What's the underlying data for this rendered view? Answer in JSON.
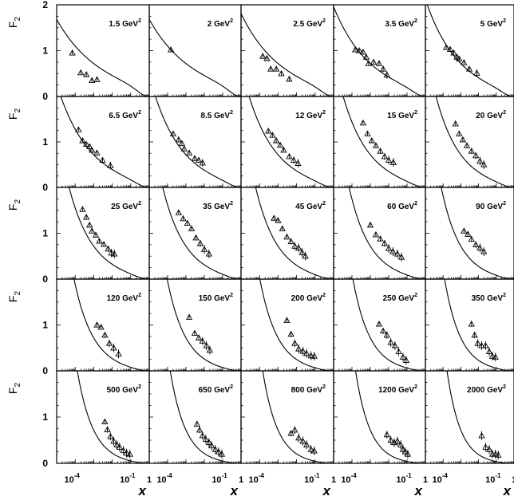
{
  "chart_data": {
    "type": "scatter",
    "layout": "grid of 25 panels, 5 rows x 5 columns, shared axes",
    "ylabel": "F",
    "ylabel_subscript": "2",
    "xlabel": "x",
    "x_scale": "log",
    "xlim": [
      1e-05,
      1
    ],
    "ylim": [
      0,
      2
    ],
    "y_ticks": [
      "0",
      "1",
      "2"
    ],
    "x_tick_labels": [
      {
        "base": "10",
        "exp": "-4"
      },
      {
        "base": "10",
        "exp": "-1"
      },
      {
        "base": "1",
        "exp": ""
      }
    ],
    "marker": "open-triangle with error bars",
    "curve": "fit (solid line)",
    "panels": [
      {
        "label": "1.5 GeV",
        "unit_exp": "2",
        "curve_k": 0.184,
        "points": [
          [
            7e-05,
            0.95
          ],
          [
            0.0002,
            0.52
          ],
          [
            0.0004,
            0.48
          ],
          [
            0.0008,
            0.35
          ],
          [
            0.0015,
            0.37
          ]
        ]
      },
      {
        "label": "2 GeV",
        "unit_exp": "2",
        "curve_k": 0.184,
        "points": [
          [
            0.00015,
            1.02
          ]
        ]
      },
      {
        "label": "2.5 GeV",
        "unit_exp": "2",
        "curve_k": 0.2,
        "points": [
          [
            0.00015,
            0.88
          ],
          [
            0.00025,
            0.83
          ],
          [
            0.0004,
            0.6
          ],
          [
            0.0008,
            0.6
          ],
          [
            0.0015,
            0.5
          ],
          [
            0.004,
            0.38
          ]
        ]
      },
      {
        "label": "3.5 GeV",
        "unit_exp": "2",
        "curve_k": 0.217,
        "points": [
          [
            0.00015,
            1.02
          ],
          [
            0.00025,
            1.0
          ],
          [
            0.0004,
            0.97
          ],
          [
            0.0006,
            0.86
          ],
          [
            0.0008,
            0.72
          ],
          [
            0.0015,
            0.75
          ],
          [
            0.003,
            0.72
          ],
          [
            0.005,
            0.6
          ],
          [
            0.008,
            0.47
          ]
        ]
      },
      {
        "label": "5 GeV",
        "unit_exp": "2",
        "curve_k": 0.234,
        "points": [
          [
            0.00015,
            1.07
          ],
          [
            0.00025,
            1.03
          ],
          [
            0.0004,
            0.95
          ],
          [
            0.0006,
            0.86
          ],
          [
            0.0008,
            0.82
          ],
          [
            0.0015,
            0.74
          ],
          [
            0.003,
            0.6
          ],
          [
            0.008,
            0.51
          ]
        ]
      },
      {
        "label": "6.5 GeV",
        "unit_exp": "2",
        "curve_k": 0.25,
        "points": [
          [
            0.00015,
            1.27
          ],
          [
            0.00025,
            1.03
          ],
          [
            0.0004,
            0.95
          ],
          [
            0.0006,
            0.9
          ],
          [
            0.0008,
            0.82
          ],
          [
            0.0015,
            0.76
          ],
          [
            0.003,
            0.6
          ],
          [
            0.008,
            0.48
          ]
        ]
      },
      {
        "label": "8.5 GeV",
        "unit_exp": "2",
        "curve_k": 0.267,
        "points": [
          [
            0.0002,
            1.18
          ],
          [
            0.0004,
            1.05
          ],
          [
            0.0006,
            0.97
          ],
          [
            0.0008,
            0.85
          ],
          [
            0.0015,
            0.76
          ],
          [
            0.003,
            0.64
          ],
          [
            0.005,
            0.6
          ],
          [
            0.008,
            0.54
          ]
        ]
      },
      {
        "label": "12 GeV",
        "unit_exp": "2",
        "curve_k": 0.284,
        "points": [
          [
            0.0003,
            1.24
          ],
          [
            0.0005,
            1.15
          ],
          [
            0.0008,
            1.03
          ],
          [
            0.0013,
            0.93
          ],
          [
            0.002,
            0.82
          ],
          [
            0.004,
            0.68
          ],
          [
            0.007,
            0.6
          ],
          [
            0.012,
            0.53
          ]
        ]
      },
      {
        "label": "15 GeV",
        "unit_exp": "2",
        "curve_k": 0.3,
        "points": [
          [
            0.0004,
            1.42
          ],
          [
            0.0007,
            1.18
          ],
          [
            0.0012,
            1.03
          ],
          [
            0.002,
            0.92
          ],
          [
            0.0035,
            0.8
          ],
          [
            0.006,
            0.68
          ],
          [
            0.01,
            0.6
          ],
          [
            0.018,
            0.55
          ]
        ]
      },
      {
        "label": "20 GeV",
        "unit_exp": "2",
        "curve_k": 0.317,
        "points": [
          [
            0.0005,
            1.4
          ],
          [
            0.0008,
            1.18
          ],
          [
            0.0013,
            1.05
          ],
          [
            0.0022,
            0.92
          ],
          [
            0.004,
            0.8
          ],
          [
            0.007,
            0.7
          ],
          [
            0.012,
            0.58
          ],
          [
            0.02,
            0.5
          ]
        ]
      },
      {
        "label": "25 GeV",
        "unit_exp": "2",
        "curve_k": 0.334,
        "points": [
          [
            0.00025,
            1.52
          ],
          [
            0.0004,
            1.35
          ],
          [
            0.0006,
            1.18
          ],
          [
            0.0008,
            1.05
          ],
          [
            0.0013,
            0.96
          ],
          [
            0.002,
            0.83
          ],
          [
            0.0035,
            0.76
          ],
          [
            0.006,
            0.66
          ],
          [
            0.009,
            0.57
          ],
          [
            0.013,
            0.55
          ]
        ]
      },
      {
        "label": "35 GeV",
        "unit_exp": "2",
        "curve_k": 0.351,
        "points": [
          [
            0.0004,
            1.45
          ],
          [
            0.0007,
            1.32
          ],
          [
            0.0012,
            1.22
          ],
          [
            0.002,
            1.1
          ],
          [
            0.0035,
            0.9
          ],
          [
            0.006,
            0.78
          ],
          [
            0.01,
            0.65
          ],
          [
            0.018,
            0.55
          ]
        ]
      },
      {
        "label": "45 GeV",
        "unit_exp": "2",
        "curve_k": 0.367,
        "points": [
          [
            0.0006,
            1.33
          ],
          [
            0.001,
            1.28
          ],
          [
            0.0017,
            1.1
          ],
          [
            0.003,
            0.92
          ],
          [
            0.005,
            0.82
          ],
          [
            0.008,
            0.72
          ],
          [
            0.013,
            0.68
          ],
          [
            0.02,
            0.58
          ],
          [
            0.03,
            0.5
          ]
        ]
      },
      {
        "label": "60 GeV",
        "unit_exp": "2",
        "curve_k": 0.384,
        "points": [
          [
            0.001,
            1.18
          ],
          [
            0.002,
            0.97
          ],
          [
            0.0035,
            0.88
          ],
          [
            0.006,
            0.78
          ],
          [
            0.01,
            0.67
          ],
          [
            0.017,
            0.6
          ],
          [
            0.03,
            0.55
          ],
          [
            0.05,
            0.48
          ]
        ]
      },
      {
        "label": "90 GeV",
        "unit_exp": "2",
        "curve_k": 0.401,
        "points": [
          [
            0.0015,
            1.05
          ],
          [
            0.0025,
            0.98
          ],
          [
            0.004,
            0.87
          ],
          [
            0.007,
            0.75
          ],
          [
            0.012,
            0.68
          ],
          [
            0.02,
            0.6
          ]
        ]
      },
      {
        "label": "120 GeV",
        "unit_exp": "2",
        "curve_k": 0.418,
        "points": [
          [
            0.0015,
            1.0
          ],
          [
            0.0025,
            0.95
          ],
          [
            0.004,
            0.78
          ],
          [
            0.007,
            0.6
          ],
          [
            0.012,
            0.5
          ],
          [
            0.022,
            0.37
          ]
        ]
      },
      {
        "label": "150 GeV",
        "unit_exp": "2",
        "curve_k": 0.434,
        "points": [
          [
            0.0015,
            1.17
          ],
          [
            0.003,
            0.82
          ],
          [
            0.005,
            0.72
          ],
          [
            0.008,
            0.65
          ],
          [
            0.013,
            0.55
          ],
          [
            0.02,
            0.45
          ]
        ]
      },
      {
        "label": "200 GeV",
        "unit_exp": "2",
        "curve_k": 0.451,
        "points": [
          [
            0.003,
            1.1
          ],
          [
            0.005,
            0.8
          ],
          [
            0.008,
            0.6
          ],
          [
            0.013,
            0.48
          ],
          [
            0.022,
            0.43
          ],
          [
            0.035,
            0.38
          ],
          [
            0.06,
            0.33
          ],
          [
            0.09,
            0.32
          ]
        ]
      },
      {
        "label": "250 GeV",
        "unit_exp": "2",
        "curve_k": 0.468,
        "points": [
          [
            0.003,
            1.02
          ],
          [
            0.005,
            0.87
          ],
          [
            0.008,
            0.78
          ],
          [
            0.013,
            0.62
          ],
          [
            0.022,
            0.55
          ],
          [
            0.035,
            0.42
          ],
          [
            0.06,
            0.3
          ],
          [
            0.09,
            0.23
          ]
        ]
      },
      {
        "label": "350 GeV",
        "unit_exp": "2",
        "curve_k": 0.485,
        "points": [
          [
            0.004,
            1.02
          ],
          [
            0.006,
            0.78
          ],
          [
            0.009,
            0.6
          ],
          [
            0.015,
            0.55
          ],
          [
            0.025,
            0.55
          ],
          [
            0.04,
            0.42
          ],
          [
            0.06,
            0.32
          ],
          [
            0.09,
            0.3
          ]
        ]
      },
      {
        "label": "500 GeV",
        "unit_exp": "2",
        "curve_k": 0.501,
        "points": [
          [
            0.004,
            0.9
          ],
          [
            0.0055,
            0.73
          ],
          [
            0.008,
            0.58
          ],
          [
            0.012,
            0.48
          ],
          [
            0.018,
            0.4
          ],
          [
            0.025,
            0.35
          ],
          [
            0.04,
            0.28
          ],
          [
            0.06,
            0.22
          ],
          [
            0.09,
            0.2
          ]
        ]
      },
      {
        "label": "650 GeV",
        "unit_exp": "2",
        "curve_k": 0.518,
        "points": [
          [
            0.004,
            0.85
          ],
          [
            0.0055,
            0.72
          ],
          [
            0.008,
            0.6
          ],
          [
            0.012,
            0.52
          ],
          [
            0.018,
            0.45
          ],
          [
            0.025,
            0.38
          ],
          [
            0.04,
            0.3
          ],
          [
            0.06,
            0.25
          ],
          [
            0.09,
            0.2
          ]
        ]
      },
      {
        "label": "800 GeV",
        "unit_exp": "2",
        "curve_k": 0.535,
        "points": [
          [
            0.005,
            0.65
          ],
          [
            0.008,
            0.72
          ],
          [
            0.013,
            0.55
          ],
          [
            0.022,
            0.48
          ],
          [
            0.035,
            0.4
          ],
          [
            0.06,
            0.3
          ],
          [
            0.09,
            0.27
          ]
        ]
      },
      {
        "label": "1200 GeV",
        "unit_exp": "2",
        "curve_k": 0.552,
        "points": [
          [
            0.008,
            0.62
          ],
          [
            0.013,
            0.5
          ],
          [
            0.02,
            0.45
          ],
          [
            0.03,
            0.48
          ],
          [
            0.045,
            0.4
          ],
          [
            0.06,
            0.3
          ],
          [
            0.08,
            0.25
          ],
          [
            0.11,
            0.2
          ]
        ]
      },
      {
        "label": "2000 GeV",
        "unit_exp": "2",
        "curve_k": 0.568,
        "points": [
          [
            0.015,
            0.6
          ],
          [
            0.025,
            0.35
          ],
          [
            0.04,
            0.3
          ],
          [
            0.06,
            0.2
          ],
          [
            0.09,
            0.2
          ],
          [
            0.13,
            0.18
          ]
        ]
      }
    ]
  }
}
